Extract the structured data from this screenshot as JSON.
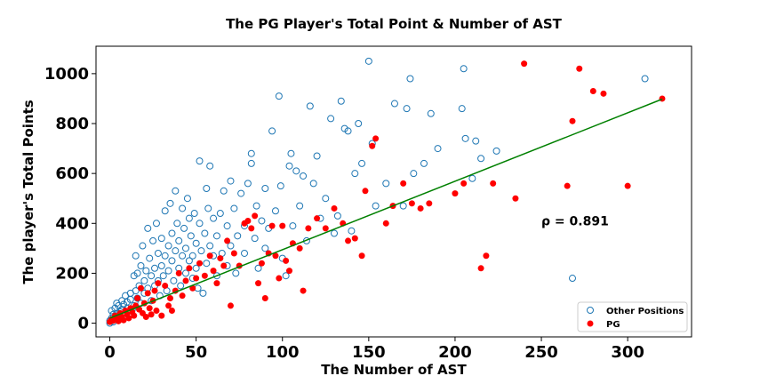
{
  "chart_data": {
    "type": "scatter",
    "title": "The PG Player's Total Point & Number of AST",
    "xlabel": "The Number of AST",
    "ylabel": "The player's Total Points",
    "xlim": [
      -8,
      337
    ],
    "ylim": [
      -55,
      1110
    ],
    "xticks": [
      "0",
      "50",
      "100",
      "150",
      "200",
      "250",
      "300"
    ],
    "yticks": [
      "0",
      "200",
      "400",
      "600",
      "800",
      "1000"
    ],
    "xtick_values": [
      0,
      50,
      100,
      150,
      200,
      250,
      300
    ],
    "ytick_values": [
      0,
      200,
      400,
      600,
      800,
      1000
    ],
    "annotation": {
      "text": "ρ = 0.891",
      "x": 250,
      "y": 410
    },
    "legend": {
      "position": "lower-right",
      "entries": [
        "Other Positions",
        "PG"
      ]
    },
    "colors": {
      "other": "#1f77b4",
      "pg": "#ff0000",
      "fit": "#008000"
    },
    "series": [
      {
        "name": "Other Positions",
        "marker": "open-circle",
        "points": [
          [
            0,
            0
          ],
          [
            0,
            10
          ],
          [
            1,
            50
          ],
          [
            1,
            20
          ],
          [
            2,
            35
          ],
          [
            2,
            5
          ],
          [
            3,
            60
          ],
          [
            3,
            25
          ],
          [
            4,
            80
          ],
          [
            4,
            40
          ],
          [
            5,
            15
          ],
          [
            5,
            70
          ],
          [
            6,
            45
          ],
          [
            6,
            30
          ],
          [
            7,
            90
          ],
          [
            7,
            55
          ],
          [
            8,
            20
          ],
          [
            8,
            75
          ],
          [
            9,
            110
          ],
          [
            9,
            40
          ],
          [
            10,
            85
          ],
          [
            10,
            60
          ],
          [
            11,
            30
          ],
          [
            12,
            120
          ],
          [
            12,
            95
          ],
          [
            13,
            55
          ],
          [
            14,
            190
          ],
          [
            14,
            70
          ],
          [
            15,
            270
          ],
          [
            15,
            130
          ],
          [
            16,
            200
          ],
          [
            16,
            100
          ],
          [
            17,
            150
          ],
          [
            18,
            80
          ],
          [
            18,
            230
          ],
          [
            19,
            310
          ],
          [
            20,
            170
          ],
          [
            20,
            120
          ],
          [
            21,
            210
          ],
          [
            22,
            380
          ],
          [
            22,
            140
          ],
          [
            23,
            260
          ],
          [
            24,
            190
          ],
          [
            24,
            90
          ],
          [
            25,
            330
          ],
          [
            26,
            220
          ],
          [
            26,
            150
          ],
          [
            27,
            400
          ],
          [
            28,
            280
          ],
          [
            28,
            170
          ],
          [
            29,
            110
          ],
          [
            30,
            340
          ],
          [
            30,
            230
          ],
          [
            31,
            190
          ],
          [
            32,
            450
          ],
          [
            32,
            270
          ],
          [
            33,
            130
          ],
          [
            34,
            310
          ],
          [
            34,
            210
          ],
          [
            35,
            480
          ],
          [
            36,
            360
          ],
          [
            36,
            250
          ],
          [
            37,
            170
          ],
          [
            38,
            530
          ],
          [
            38,
            290
          ],
          [
            39,
            400
          ],
          [
            40,
            220
          ],
          [
            40,
            330
          ],
          [
            41,
            150
          ],
          [
            42,
            460
          ],
          [
            42,
            270
          ],
          [
            43,
            380
          ],
          [
            44,
            200
          ],
          [
            44,
            300
          ],
          [
            45,
            500
          ],
          [
            46,
            420
          ],
          [
            46,
            250
          ],
          [
            47,
            350
          ],
          [
            48,
            180
          ],
          [
            48,
            270
          ],
          [
            49,
            440
          ],
          [
            50,
            320
          ],
          [
            50,
            220
          ],
          [
            51,
            140
          ],
          [
            52,
            650
          ],
          [
            52,
            400
          ],
          [
            53,
            290
          ],
          [
            54,
            120
          ],
          [
            55,
            360
          ],
          [
            56,
            540
          ],
          [
            56,
            240
          ],
          [
            57,
            460
          ],
          [
            58,
            310
          ],
          [
            58,
            630
          ],
          [
            60,
            420
          ],
          [
            60,
            270
          ],
          [
            62,
            190
          ],
          [
            62,
            350
          ],
          [
            64,
            440
          ],
          [
            65,
            280
          ],
          [
            66,
            530
          ],
          [
            68,
            390
          ],
          [
            68,
            230
          ],
          [
            70,
            570
          ],
          [
            70,
            310
          ],
          [
            72,
            460
          ],
          [
            73,
            200
          ],
          [
            74,
            350
          ],
          [
            76,
            520
          ],
          [
            78,
            280
          ],
          [
            78,
            390
          ],
          [
            80,
            560
          ],
          [
            82,
            640
          ],
          [
            82,
            680
          ],
          [
            84,
            340
          ],
          [
            85,
            470
          ],
          [
            86,
            220
          ],
          [
            88,
            410
          ],
          [
            90,
            300
          ],
          [
            90,
            540
          ],
          [
            92,
            380
          ],
          [
            94,
            770
          ],
          [
            96,
            450
          ],
          [
            98,
            910
          ],
          [
            99,
            550
          ],
          [
            100,
            260
          ],
          [
            102,
            190
          ],
          [
            104,
            630
          ],
          [
            105,
            680
          ],
          [
            106,
            390
          ],
          [
            108,
            610
          ],
          [
            110,
            470
          ],
          [
            112,
            590
          ],
          [
            114,
            330
          ],
          [
            116,
            870
          ],
          [
            118,
            560
          ],
          [
            120,
            670
          ],
          [
            122,
            420
          ],
          [
            125,
            500
          ],
          [
            128,
            820
          ],
          [
            130,
            360
          ],
          [
            132,
            430
          ],
          [
            134,
            890
          ],
          [
            136,
            780
          ],
          [
            138,
            770
          ],
          [
            140,
            370
          ],
          [
            142,
            600
          ],
          [
            144,
            800
          ],
          [
            146,
            640
          ],
          [
            150,
            1050
          ],
          [
            152,
            720
          ],
          [
            154,
            470
          ],
          [
            160,
            560
          ],
          [
            165,
            880
          ],
          [
            170,
            470
          ],
          [
            172,
            860
          ],
          [
            174,
            980
          ],
          [
            176,
            600
          ],
          [
            182,
            640
          ],
          [
            186,
            840
          ],
          [
            190,
            700
          ],
          [
            204,
            860
          ],
          [
            205,
            1020
          ],
          [
            206,
            740
          ],
          [
            210,
            580
          ],
          [
            212,
            730
          ],
          [
            215,
            660
          ],
          [
            224,
            690
          ],
          [
            268,
            180
          ],
          [
            310,
            980
          ]
        ]
      },
      {
        "name": "PG",
        "marker": "filled-circle",
        "points": [
          [
            0,
            5
          ],
          [
            1,
            15
          ],
          [
            2,
            10
          ],
          [
            3,
            30
          ],
          [
            4,
            20
          ],
          [
            5,
            8
          ],
          [
            6,
            40
          ],
          [
            7,
            25
          ],
          [
            8,
            12
          ],
          [
            9,
            50
          ],
          [
            10,
            35
          ],
          [
            11,
            20
          ],
          [
            12,
            60
          ],
          [
            13,
            45
          ],
          [
            14,
            30
          ],
          [
            15,
            70
          ],
          [
            16,
            100
          ],
          [
            17,
            55
          ],
          [
            18,
            140
          ],
          [
            19,
            40
          ],
          [
            20,
            80
          ],
          [
            21,
            25
          ],
          [
            22,
            120
          ],
          [
            23,
            60
          ],
          [
            24,
            35
          ],
          [
            25,
            90
          ],
          [
            26,
            130
          ],
          [
            27,
            50
          ],
          [
            28,
            160
          ],
          [
            30,
            30
          ],
          [
            32,
            150
          ],
          [
            34,
            70
          ],
          [
            35,
            100
          ],
          [
            36,
            50
          ],
          [
            38,
            130
          ],
          [
            40,
            200
          ],
          [
            42,
            110
          ],
          [
            44,
            170
          ],
          [
            46,
            220
          ],
          [
            48,
            140
          ],
          [
            50,
            180
          ],
          [
            52,
            240
          ],
          [
            55,
            190
          ],
          [
            58,
            270
          ],
          [
            60,
            210
          ],
          [
            62,
            160
          ],
          [
            64,
            260
          ],
          [
            66,
            230
          ],
          [
            68,
            330
          ],
          [
            70,
            70
          ],
          [
            72,
            280
          ],
          [
            75,
            230
          ],
          [
            78,
            400
          ],
          [
            80,
            410
          ],
          [
            82,
            380
          ],
          [
            84,
            430
          ],
          [
            86,
            160
          ],
          [
            88,
            240
          ],
          [
            90,
            100
          ],
          [
            92,
            280
          ],
          [
            94,
            390
          ],
          [
            96,
            270
          ],
          [
            98,
            180
          ],
          [
            100,
            390
          ],
          [
            102,
            250
          ],
          [
            104,
            210
          ],
          [
            106,
            320
          ],
          [
            110,
            300
          ],
          [
            112,
            130
          ],
          [
            115,
            380
          ],
          [
            120,
            420
          ],
          [
            125,
            380
          ],
          [
            130,
            460
          ],
          [
            135,
            400
          ],
          [
            138,
            330
          ],
          [
            142,
            340
          ],
          [
            146,
            270
          ],
          [
            148,
            530
          ],
          [
            152,
            710
          ],
          [
            154,
            740
          ],
          [
            160,
            400
          ],
          [
            164,
            470
          ],
          [
            170,
            560
          ],
          [
            175,
            480
          ],
          [
            180,
            460
          ],
          [
            185,
            480
          ],
          [
            200,
            520
          ],
          [
            205,
            560
          ],
          [
            215,
            220
          ],
          [
            218,
            270
          ],
          [
            222,
            560
          ],
          [
            235,
            500
          ],
          [
            240,
            1040
          ],
          [
            265,
            550
          ],
          [
            268,
            810
          ],
          [
            272,
            1020
          ],
          [
            280,
            930
          ],
          [
            286,
            920
          ],
          [
            300,
            550
          ],
          [
            320,
            900
          ]
        ]
      }
    ],
    "fit_line": {
      "x": [
        0,
        320
      ],
      "y": [
        20,
        898
      ]
    }
  }
}
